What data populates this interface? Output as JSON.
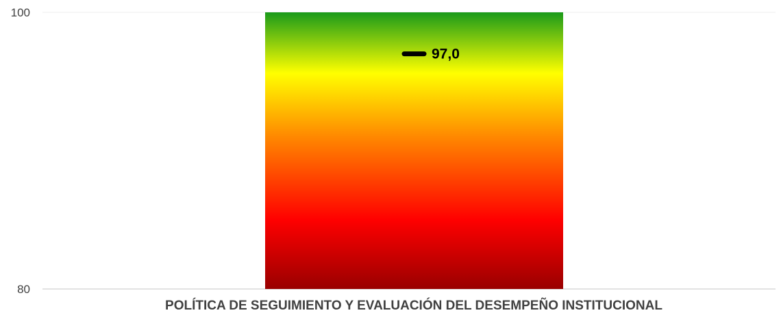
{
  "chart_data": {
    "type": "bar",
    "categories": [
      "POLÍTICA DE SEGUIMIENTO Y EVALUACIÓN DEL DESEMPEÑO INSTITUCIONAL"
    ],
    "values": [
      97.0
    ],
    "value_label": "97,0",
    "ylim": [
      80,
      100
    ],
    "yticks": [
      "80",
      "100"
    ],
    "grid": true,
    "legend": "none",
    "gradient_colors": [
      "#1a9a1a",
      "#ffff00",
      "#ff8800",
      "#ff0000",
      "#990000"
    ],
    "title": "",
    "xlabel": "",
    "ylabel": ""
  }
}
